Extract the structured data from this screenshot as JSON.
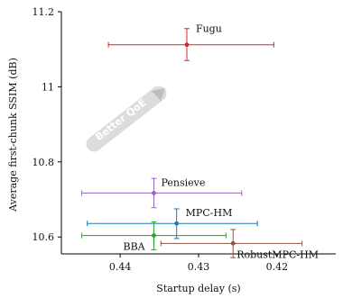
{
  "chart_data": {
    "type": "scatter",
    "xlabel": "Startup delay (s)",
    "ylabel": "Average first-chunk SSIM (dB)",
    "x_reversed": true,
    "xlim": [
      0.4475,
      0.4125
    ],
    "ylim": [
      10.555,
      11.2
    ],
    "xticks": [
      0.44,
      0.43,
      0.42
    ],
    "xtick_labels": [
      "0.44",
      "0.43",
      "0.42"
    ],
    "yticks": [
      10.6,
      10.8,
      11,
      11.2
    ],
    "ytick_labels": [
      "10.6",
      "10.8",
      "11",
      "11.2"
    ],
    "annotation": "Better QoE",
    "annotation_direction": "up-right",
    "grid": false,
    "series": [
      {
        "name": "Fugu",
        "color": "#d62728",
        "x": 0.4315,
        "y": 11.112,
        "xerr": [
          0.4415,
          0.4204
        ],
        "yerr": [
          11.07,
          11.155
        ]
      },
      {
        "name": "Pensieve",
        "color": "#9467bd",
        "x": 0.4357,
        "y": 10.717,
        "xerr": [
          0.4449,
          0.4245
        ],
        "yerr": [
          10.678,
          10.756
        ]
      },
      {
        "name": "MPC-HM",
        "color": "#1f77b4",
        "x": 0.4328,
        "y": 10.636,
        "xerr": [
          0.4442,
          0.4225
        ],
        "yerr": [
          10.596,
          10.675
        ]
      },
      {
        "name": "BBA",
        "color": "#2ca02c",
        "x": 0.4357,
        "y": 10.604,
        "xerr": [
          0.4449,
          0.4265
        ],
        "yerr": [
          10.566,
          10.64
        ]
      },
      {
        "name": "RobustMPC-HM",
        "color": "#8c564b",
        "x": 0.4256,
        "y": 10.583,
        "xerr": [
          0.4348,
          0.4168
        ],
        "yerr": [
          10.545,
          10.62
        ]
      }
    ]
  }
}
